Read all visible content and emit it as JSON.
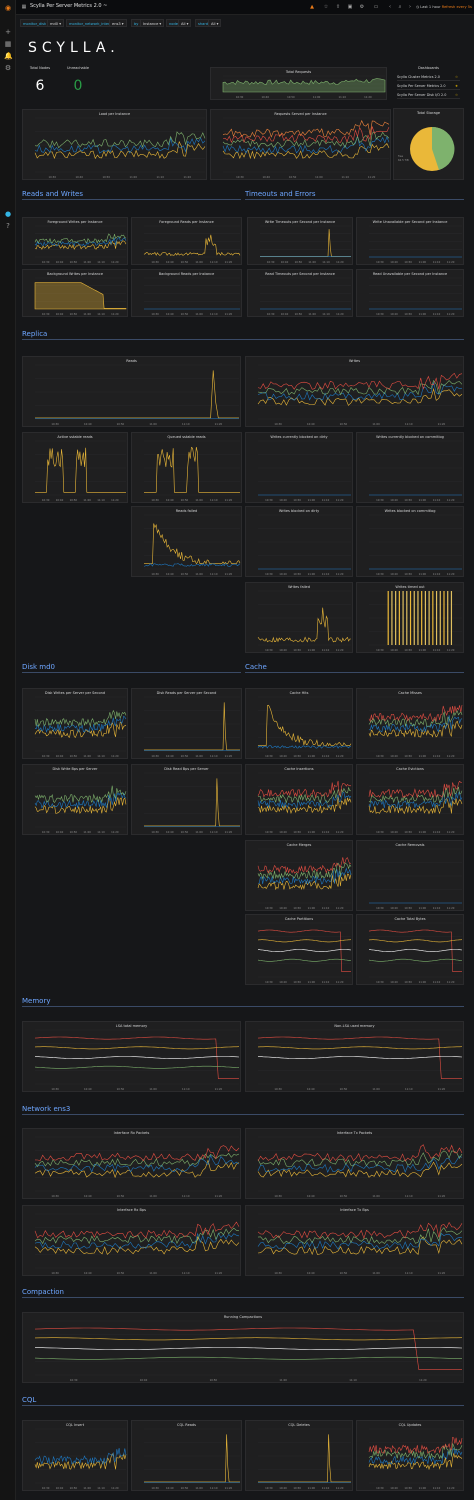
{
  "app": {
    "title": "Scylla Per Server Metrics 2.0 ~",
    "time_range": "Last 1 hour",
    "refresh": "Refresh every 5s",
    "colors": {
      "background": "#161719",
      "panel": "#1f1f20",
      "section": "#6ea6ff",
      "green": "#7eb26d",
      "yellow": "#eab839",
      "blue": "#1f78c1",
      "orange": "#ef843c",
      "red": "#e24d42",
      "white": "#ffffff"
    },
    "sidebar_icons": [
      "grafana-icon",
      "plus-icon",
      "dashboards-icon",
      "alert-icon",
      "gear-icon",
      "avatar-icon",
      "help-icon"
    ],
    "toolbar_icons": [
      "add-panel-icon",
      "star-icon",
      "share-icon",
      "save-icon",
      "settings-icon",
      "tv-icon",
      "zoom-out-icon",
      "refresh-icon"
    ]
  },
  "variables": [
    {
      "label": "monitor_disk",
      "value": "md0 ▾"
    },
    {
      "label": "monitor_network_interface",
      "value": "ens3 ▾"
    },
    {
      "label": "by",
      "value": "Instance ▾"
    },
    {
      "label": "node",
      "value": "All ▾"
    },
    {
      "label": "shard",
      "value": "All ▾"
    }
  ],
  "logo": "SCYLLA.",
  "stats": {
    "total_nodes": {
      "label": "Total Nodes",
      "value": "6"
    },
    "unreachable": {
      "label": "Unreachable",
      "value": "0"
    }
  },
  "dashboards": {
    "title": "Dashboards",
    "items": [
      "Scylla Cluster Metrics 2.0",
      "Scylla Per Server Metrics 2.0",
      "Scylla Per Server Disk I/O 2.0"
    ]
  },
  "total_storage": {
    "title": "Total Storage",
    "legend": [
      "Used",
      "Free"
    ],
    "used_label": "free",
    "free_label": "62.5 TiB"
  },
  "sections": {
    "reads_writes": "Reads and Writes",
    "timeouts": "Timeouts and Errors",
    "replica": "Replica",
    "disk": "Disk md0",
    "cache": "Cache",
    "memory": "Memory",
    "network": "Network ens3",
    "compaction": "Compaction",
    "cql": "CQL"
  },
  "panels": {
    "total_requests": "Total Requests",
    "load": "Load per Instance",
    "requests_served": "Requests Served per Instance",
    "fg_writes": "Foreground Writes per Instance",
    "fg_reads": "Foreground Reads per Instance",
    "bg_writes": "Background Writes per Instance",
    "bg_reads": "Background Reads per Instance",
    "write_timeouts": "Write Timeouts per Second per Instance",
    "write_unavailable": "Write Unavailable per Second per Instance",
    "read_timeouts": "Read Timeouts per Second per Instance",
    "read_unavailable": "Read Unavailable per Second per Instance",
    "reads": "Reads",
    "writes": "Writes",
    "active_sstable_reads": "Active sstable reads",
    "queued_sstable_reads": "Queued sstable reads",
    "writes_blocked_dirty": "Writes currently blocked on dirty",
    "writes_blocked_commitlog": "Writes currently blocked on commitlog",
    "reads_failed": "Reads failed",
    "writes_blocked_on_dirty": "Writes blocked on dirty",
    "writes_blocked_on_commitlog": "Writes blocked on commitlog",
    "writes_failed": "Writes failed",
    "writes_timed_out": "Writes timed out",
    "disk_writes": "Disk Writes per Server per Second",
    "disk_reads": "Disk Reads per Server per Second",
    "disk_write_bps": "Disk Write Bps per Server",
    "disk_read_bps": "Disk Read Bps per Server",
    "cache_hits": "Cache Hits",
    "cache_misses": "Cache Misses",
    "cache_insertions": "Cache Insertions",
    "cache_evictions": "Cache Evictions",
    "cache_merges": "Cache Merges",
    "cache_removals": "Cache Removals",
    "cache_partitions": "Cache Partitions",
    "cache_total_bytes": "Cache Total Bytes",
    "lsa_total_memory": "LSA total memory",
    "non_lsa_memory": "Non-LSA used memory",
    "rx_packets": "Interface Rx Packets",
    "tx_packets": "Interface Tx Packets",
    "rx_bps": "Interface Rx Bps",
    "tx_bps": "Interface Tx Bps",
    "running_compactions": "Running Compactions",
    "cql_insert": "CQL Insert",
    "cql_reads": "CQL Reads",
    "cql_deletes": "CQL Deletes",
    "cql_updates": "CQL Updates"
  },
  "time_ticks": [
    "10:30",
    "10:40",
    "10:50",
    "11:00",
    "11:10",
    "11:20"
  ]
}
